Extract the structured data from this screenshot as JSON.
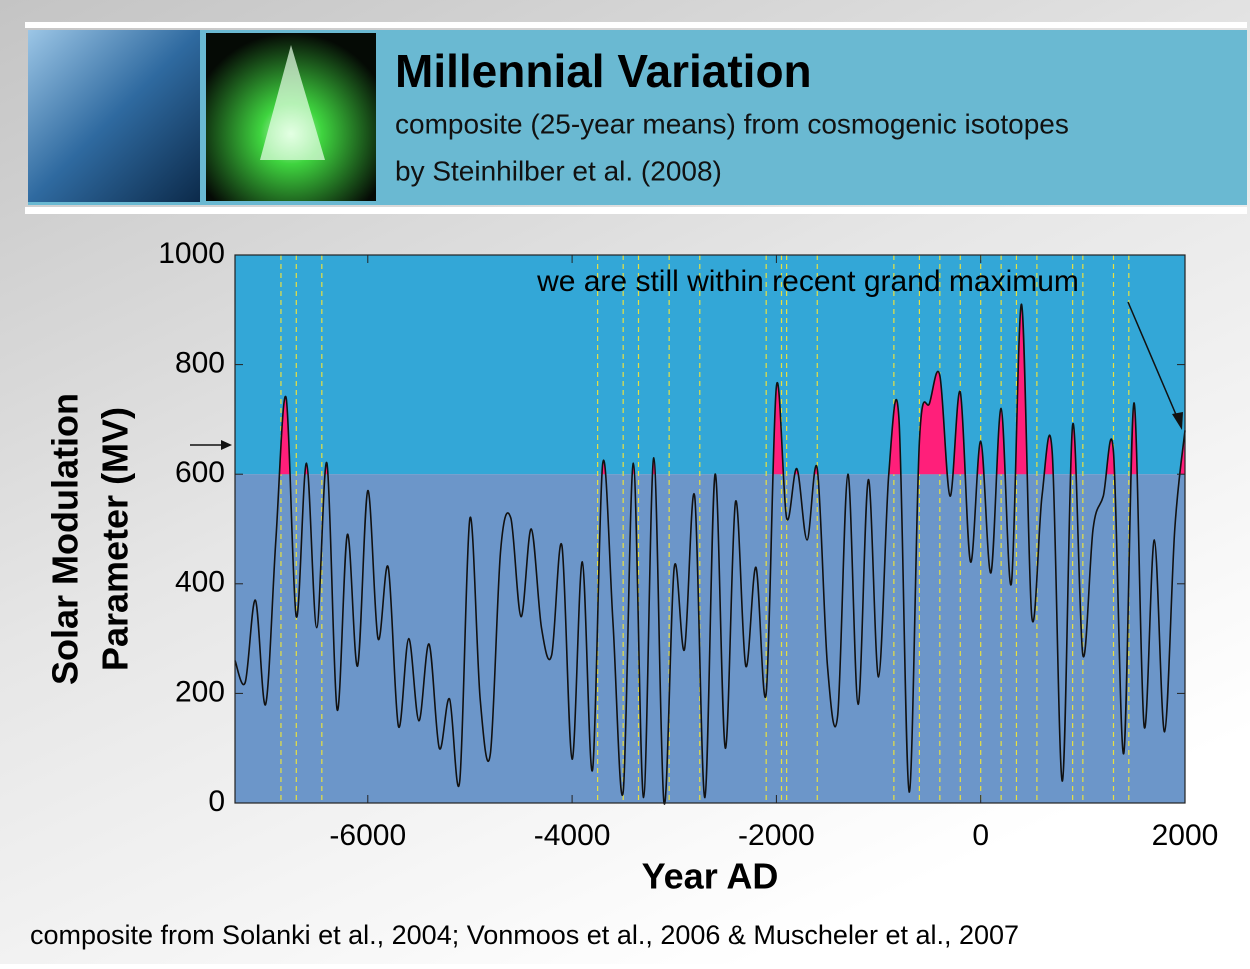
{
  "header": {
    "title": "Millennial Variation",
    "subtitle": "composite (25-year means) from cosmogenic isotopes",
    "byline": "by Steinhilber et al. (2008)"
  },
  "chart_data": {
    "type": "line",
    "ylabel": [
      "Solar Modulation",
      "Parameter  (MV)"
    ],
    "xlabel": "Year AD",
    "annotation": "we are still within recent grand maximum",
    "xlim": [
      -7300,
      2000
    ],
    "xticks": [
      -6000,
      -4000,
      -2000,
      0,
      2000
    ],
    "ylim": [
      0,
      1000
    ],
    "yticks": [
      0,
      200,
      400,
      600,
      800,
      1000
    ],
    "threshold": 600,
    "markers_x": [
      -6850,
      -6700,
      -6450,
      -3750,
      -3500,
      -3350,
      -3050,
      -2750,
      -2100,
      -1950,
      -1900,
      -1600,
      -850,
      -600,
      -400,
      -200,
      0,
      200,
      350,
      550,
      900,
      1000,
      1300,
      1450
    ],
    "x": [
      -7300,
      -7200,
      -7100,
      -7000,
      -6900,
      -6800,
      -6700,
      -6600,
      -6500,
      -6400,
      -6300,
      -6200,
      -6100,
      -6000,
      -5900,
      -5800,
      -5700,
      -5600,
      -5500,
      -5400,
      -5300,
      -5200,
      -5100,
      -5000,
      -4900,
      -4800,
      -4700,
      -4600,
      -4500,
      -4400,
      -4300,
      -4200,
      -4100,
      -4000,
      -3900,
      -3800,
      -3700,
      -3600,
      -3500,
      -3400,
      -3300,
      -3200,
      -3100,
      -3000,
      -2900,
      -2800,
      -2700,
      -2600,
      -2500,
      -2400,
      -2300,
      -2200,
      -2100,
      -2000,
      -1900,
      -1800,
      -1700,
      -1600,
      -1500,
      -1400,
      -1300,
      -1200,
      -1100,
      -1000,
      -900,
      -800,
      -700,
      -600,
      -500,
      -400,
      -300,
      -200,
      -100,
      0,
      100,
      200,
      300,
      400,
      500,
      600,
      700,
      800,
      900,
      1000,
      1100,
      1200,
      1300,
      1400,
      1500,
      1600,
      1700,
      1800,
      1900,
      2000
    ],
    "series": [
      {
        "color": "#111111",
        "values": [
          260,
          220,
          370,
          180,
          480,
          740,
          340,
          620,
          320,
          620,
          170,
          490,
          250,
          570,
          300,
          430,
          140,
          300,
          150,
          290,
          100,
          190,
          40,
          520,
          190,
          90,
          460,
          520,
          340,
          500,
          320,
          270,
          470,
          80,
          440,
          60,
          620,
          330,
          20,
          620,
          10,
          630,
          0,
          430,
          280,
          560,
          10,
          600,
          100,
          550,
          250,
          430,
          200,
          760,
          520,
          610,
          480,
          610,
          250,
          160,
          600,
          180,
          590,
          230,
          600,
          700,
          20,
          660,
          730,
          780,
          560,
          750,
          440,
          660,
          420,
          720,
          400,
          910,
          340,
          560,
          640,
          40,
          690,
          270,
          500,
          560,
          640,
          90,
          730,
          140,
          480,
          130,
          500,
          680
        ]
      }
    ]
  },
  "footer": "composite from Solanki et al., 2004; Vonmoos et al., 2006 & Muscheler et al., 2007"
}
